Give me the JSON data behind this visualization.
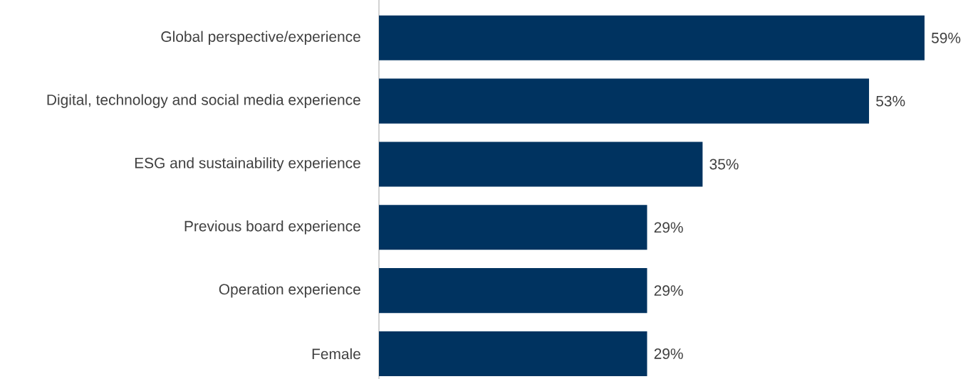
{
  "chart_data": {
    "type": "bar",
    "orientation": "horizontal",
    "categories": [
      "Global perspective/experience",
      "Digital, technology and social media experience",
      "ESG and sustainability experience",
      "Previous board experience",
      "Operation experience",
      "Female"
    ],
    "values": [
      59,
      53,
      35,
      29,
      29,
      29
    ],
    "value_labels": [
      "59%",
      "53%",
      "35%",
      "29%",
      "29%",
      "29%"
    ],
    "color": "#003360",
    "tick_labels": "y"
  }
}
